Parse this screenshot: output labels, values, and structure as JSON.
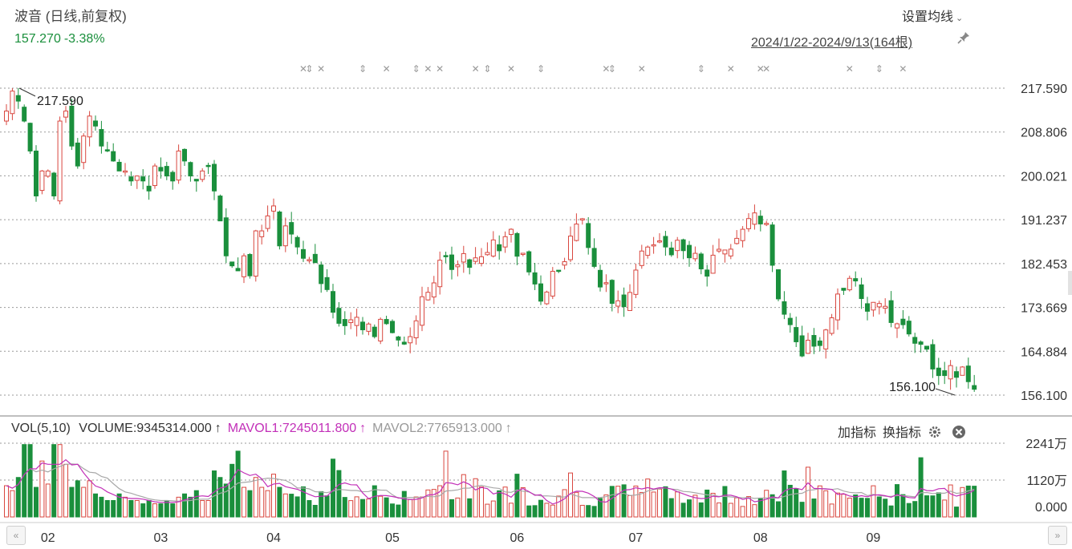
{
  "header": {
    "title": "波音 (日线,前复权)",
    "price": "157.270",
    "change": "-3.38%",
    "ma_setting_label": "设置均线",
    "chevron": "chevron-down-icon",
    "date_range": "2024/1/22-2024/9/13(164根)",
    "pin_icon": "pin-icon"
  },
  "colors": {
    "up": "#d9473f",
    "down": "#1a8f3c",
    "ma1": "#c22fb8",
    "ma2": "#a8a8a8",
    "grid": "#9a9a9a"
  },
  "volume_panel": {
    "indicator": "VOL(5,10)",
    "volume": "VOLUME:9345314.000",
    "mavol1": "MAVOL1:7245011.800",
    "mavol2": "MAVOL2:7765913.000",
    "arrow": "↑",
    "add_indicator": "加指标",
    "switch_indicator": "换指标",
    "gear_icon": "gear-icon",
    "close_icon": "close-icon"
  },
  "nav": {
    "left": "«",
    "right": "»"
  },
  "chart_data": {
    "type": "candlestick",
    "price_ticks": [
      "217.590",
      "208.806",
      "200.021",
      "191.237",
      "182.453",
      "173.669",
      "164.884",
      "156.100"
    ],
    "ylim": [
      156.1,
      217.59
    ],
    "max_label": "217.590",
    "min_label": "156.100",
    "volume_ticks": [
      "2241万",
      "1120万",
      "0.000"
    ],
    "volume_ylim": [
      0,
      22410000
    ],
    "x_labels": [
      "02",
      "03",
      "04",
      "05",
      "06",
      "07",
      "08",
      "09"
    ],
    "x_label_index": [
      7,
      26,
      45,
      65,
      86,
      106,
      127,
      146
    ],
    "candle_count": 164,
    "dividends_marker_index": [
      50,
      51,
      53,
      60,
      64,
      69,
      71,
      73,
      79,
      81,
      85,
      90,
      101,
      102,
      107,
      117,
      122,
      127,
      128,
      142,
      147,
      151
    ],
    "candle_series": [
      {
        "close": 213,
        "volume": 9.5
      },
      {
        "close": 217,
        "volume": 8
      },
      {
        "close": 215,
        "volume": 12
      },
      {
        "close": 211,
        "volume": 13
      },
      {
        "close": 205,
        "volume": 22
      },
      {
        "close": 196,
        "volume": 9
      },
      {
        "close": 201,
        "volume": 17
      },
      {
        "close": 201,
        "volume": 10
      },
      {
        "close": 196,
        "volume": 7
      },
      {
        "close": 211,
        "volume": 22
      },
      {
        "close": 213,
        "volume": 16
      },
      {
        "close": 206,
        "volume": 9
      },
      {
        "close": 202,
        "volume": 11
      },
      {
        "close": 208,
        "volume": 9
      },
      {
        "close": 212,
        "volume": 11
      },
      {
        "close": 210,
        "volume": 7
      },
      {
        "close": 206,
        "volume": 6
      },
      {
        "close": 205,
        "volume": 5
      },
      {
        "close": 203,
        "volume": 5
      },
      {
        "close": 201,
        "volume": 7
      },
      {
        "close": 201,
        "volume": 6
      },
      {
        "close": 199,
        "volume": 5
      },
      {
        "close": 200,
        "volume": 5
      },
      {
        "close": 199,
        "volume": 4
      },
      {
        "close": 197,
        "volume": 5
      },
      {
        "close": 202,
        "volume": 4
      },
      {
        "close": 201,
        "volume": 4
      },
      {
        "close": 200,
        "volume": 5
      },
      {
        "close": 199,
        "volume": 4
      },
      {
        "close": 205,
        "volume": 6
      },
      {
        "close": 203,
        "volume": 7
      },
      {
        "close": 200,
        "volume": 6
      },
      {
        "close": 199,
        "volume": 8
      },
      {
        "close": 201,
        "volume": 5
      },
      {
        "close": 202,
        "volume": 5
      },
      {
        "close": 197,
        "volume": 8
      },
      {
        "close": 191,
        "volume": 12
      },
      {
        "close": 184,
        "volume": 10
      },
      {
        "close": 182,
        "volume": 16
      },
      {
        "close": 181,
        "volume": 20
      },
      {
        "close": 184,
        "volume": 9
      },
      {
        "close": 180,
        "volume": 8
      },
      {
        "close": 189,
        "volume": 12
      },
      {
        "close": 189,
        "volume": 9
      },
      {
        "close": 192,
        "volume": 8
      },
      {
        "close": 194,
        "volume": 13
      },
      {
        "close": 186,
        "volume": 9
      },
      {
        "close": 190,
        "volume": 7
      }
    ]
  }
}
